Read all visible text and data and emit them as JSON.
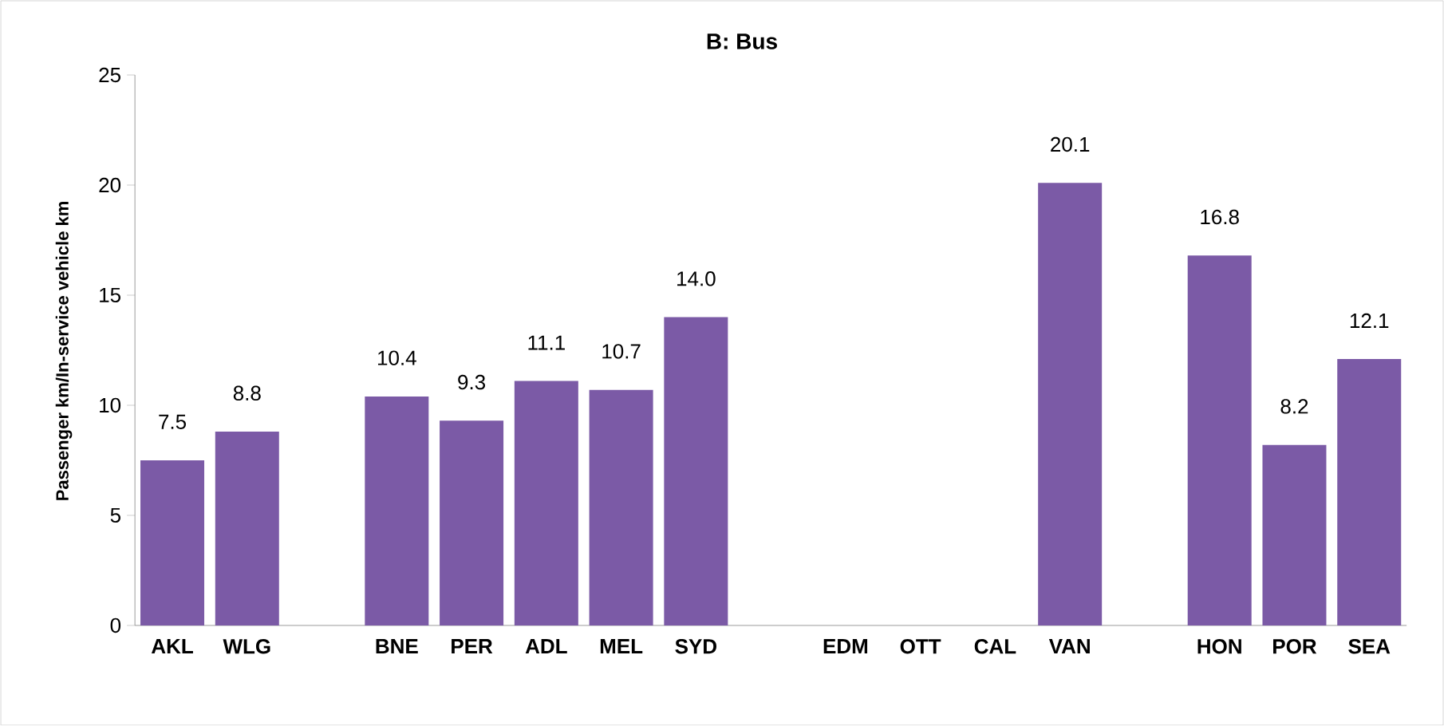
{
  "chart_data": {
    "type": "bar",
    "title": "B: Bus",
    "ylabel": "Passenger km/In-service vehicle km",
    "categories": [
      "AKL",
      "WLG",
      null,
      "BNE",
      "PER",
      "ADL",
      "MEL",
      "SYD",
      null,
      "EDM",
      "OTT",
      "CAL",
      "VAN",
      null,
      "HON",
      "POR",
      "SEA"
    ],
    "values": [
      7.5,
      8.8,
      null,
      10.4,
      9.3,
      11.1,
      10.7,
      14.0,
      null,
      null,
      null,
      null,
      20.1,
      null,
      16.8,
      8.2,
      12.1
    ],
    "value_labels": [
      "7.5",
      "8.8",
      null,
      "10.4",
      "9.3",
      "11.1",
      "10.7",
      "14.0",
      null,
      null,
      null,
      null,
      "20.1",
      null,
      "16.8",
      "8.2",
      "12.1"
    ],
    "color": "#7b5aa6",
    "ylim": [
      0,
      25
    ],
    "yticks": [
      0,
      5,
      10,
      15,
      20,
      25
    ]
  }
}
